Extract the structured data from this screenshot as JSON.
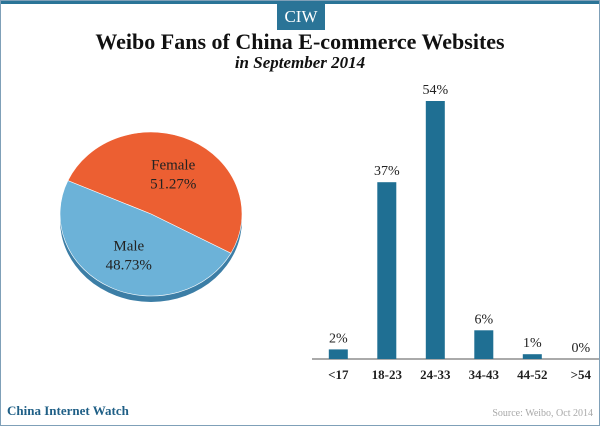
{
  "header": {
    "logo": "CIW",
    "title": "Weibo Fans of China E-commerce Websites",
    "subtitle": "in September 2014"
  },
  "footer": {
    "brand": "China Internet Watch",
    "source": "Source: Weibo, Oct 2014"
  },
  "colors": {
    "accent": "#2a7497",
    "female": "#ec5f32",
    "male": "#6cb2d8",
    "bar": "#1f6f93"
  },
  "chart_data": [
    {
      "type": "pie",
      "title": "",
      "slices": [
        {
          "label": "Female",
          "value": 51.27,
          "display": "51.27%"
        },
        {
          "label": "Male",
          "value": 48.73,
          "display": "48.73%"
        }
      ]
    },
    {
      "type": "bar",
      "title": "",
      "xlabel": "",
      "ylabel": "",
      "categories": [
        "<17",
        "18-23",
        "24-33",
        "34-43",
        "44-52",
        ">54"
      ],
      "values": [
        2,
        37,
        54,
        6,
        1,
        0
      ],
      "labels": [
        "2%",
        "37%",
        "54%",
        "6%",
        "1%",
        "0%"
      ],
      "ylim": [
        0,
        54
      ],
      "grid": false
    }
  ]
}
